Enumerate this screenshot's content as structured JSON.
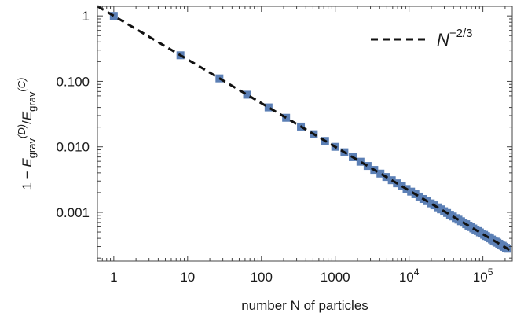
{
  "chart_data": {
    "type": "scatter",
    "xscale": "log",
    "yscale": "log",
    "xlim": [
      0.6,
      250000
    ],
    "ylim": [
      0.00018,
      1.4
    ],
    "xlabel": "number N of particles",
    "ylabel": {
      "parts": [
        "1 − ",
        "E",
        "grav",
        "(D)",
        "/",
        "E",
        "grav",
        "(C)"
      ]
    },
    "x_ticks": [
      {
        "value": 1,
        "label": "1"
      },
      {
        "value": 10,
        "label": "10"
      },
      {
        "value": 100,
        "label": "100"
      },
      {
        "value": 1000,
        "label": "1000"
      },
      {
        "value": 10000,
        "label": "10",
        "exp": "4"
      },
      {
        "value": 100000,
        "label": "10",
        "exp": "5"
      }
    ],
    "y_ticks": [
      {
        "value": 1,
        "label": "1"
      },
      {
        "value": 0.1,
        "label": "0.100"
      },
      {
        "value": 0.01,
        "label": "0.010"
      },
      {
        "value": 0.001,
        "label": "0.001"
      }
    ],
    "series": [
      {
        "type": "scatter",
        "color": "#5b7fb5",
        "x": [
          1,
          8,
          27,
          64,
          125,
          216,
          343,
          512,
          729,
          1000,
          1331,
          1728,
          2197,
          2744,
          3375,
          4096,
          4913,
          5832,
          6859,
          8000,
          9261,
          10648,
          12167,
          13824,
          15625,
          17576,
          19683,
          21952,
          24389,
          27000,
          29791,
          32768,
          35937,
          39304,
          42875,
          46656,
          50653,
          54872,
          59319,
          64000,
          68921,
          74088,
          79507,
          85184,
          91125,
          97336,
          103823,
          110592,
          117649,
          125000,
          132651,
          140608,
          148877,
          157464,
          166375,
          175616,
          185193,
          195112,
          205379,
          216000
        ],
        "y": [
          1,
          0.25,
          0.111,
          0.0625,
          0.04,
          0.0278,
          0.0204,
          0.0156,
          0.0123,
          0.01,
          0.00826,
          0.00694,
          0.00592,
          0.0051,
          0.00444,
          0.0039,
          0.00346,
          0.00309,
          0.00277,
          0.0025,
          0.00227,
          0.00207,
          0.00189,
          0.00174,
          0.0016,
          0.00148,
          0.00137,
          0.00128,
          0.00119,
          0.00111,
          0.00104,
          0.000977,
          0.000918,
          0.000865,
          0.000816,
          0.000772,
          0.000731,
          0.000694,
          0.000659,
          0.000625,
          0.000595,
          0.000567,
          0.00054,
          0.000517,
          0.000494,
          0.000473,
          0.000453,
          0.000434,
          0.000416,
          0.0004,
          0.000384,
          0.00037,
          0.000356,
          0.000343,
          0.000331,
          0.000319,
          0.000308,
          0.000297,
          0.000287,
          0.000278
        ]
      },
      {
        "type": "line",
        "style": "dashed",
        "color": "#111111",
        "formula": "N^-2/3",
        "x": [
          0.6,
          250000
        ],
        "y": [
          1.406,
          0.000252
        ]
      }
    ],
    "legend": {
      "placement": "top-right",
      "base": "N",
      "exp": "−2/3"
    },
    "grid": false,
    "frame": true
  }
}
